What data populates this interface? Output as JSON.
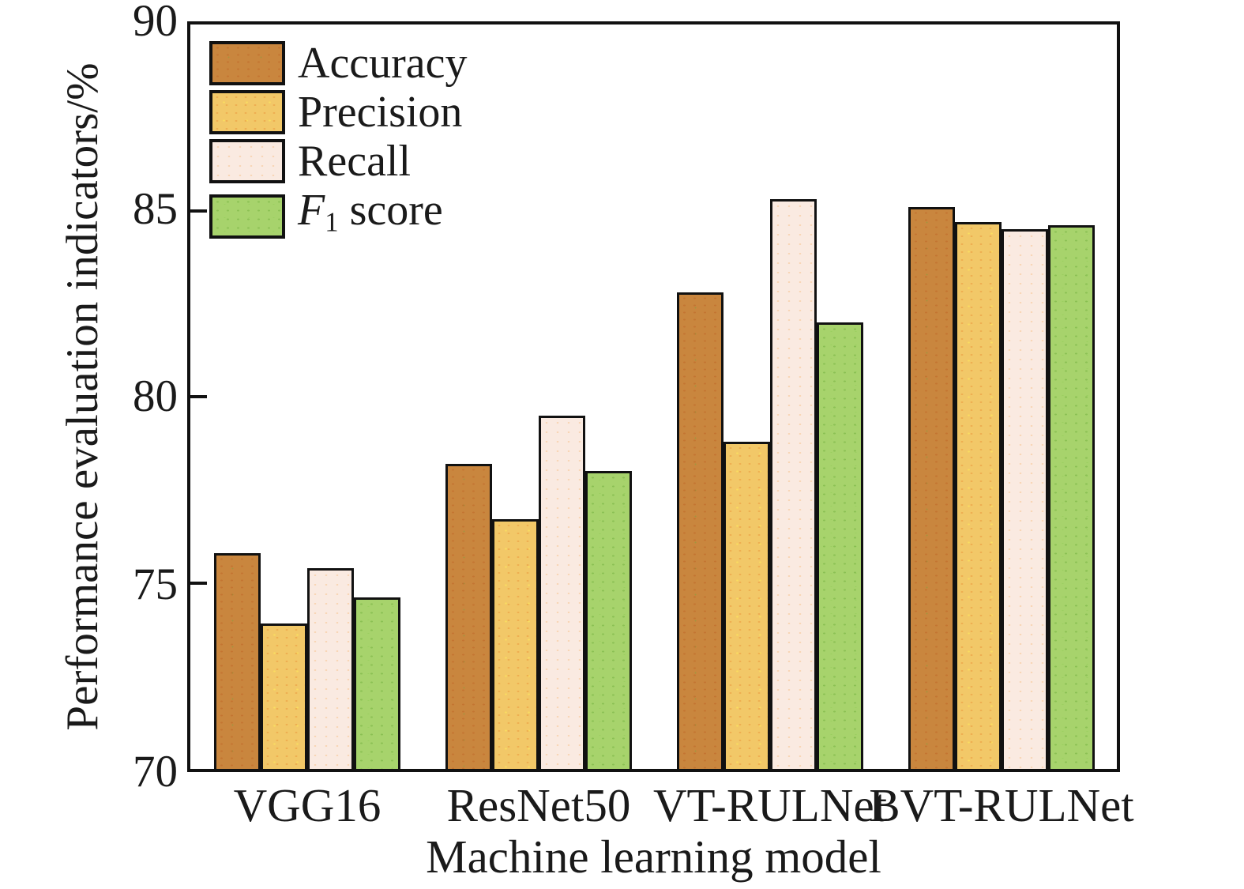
{
  "chart_data": {
    "type": "bar",
    "title": "",
    "xlabel": "Machine learning model",
    "ylabel": "Performance evaluation indicators/%",
    "categories": [
      "VGG16",
      "ResNet50",
      "VT-RULNet",
      "BVT-RULNet"
    ],
    "series": [
      {
        "name": "Accuracy",
        "color": "#c9863e",
        "values": [
          75.8,
          78.2,
          82.8,
          85.1
        ]
      },
      {
        "name": "Precision",
        "color": "#f2c868",
        "values": [
          73.9,
          76.7,
          78.8,
          84.7
        ]
      },
      {
        "name": "Recall",
        "color": "#faeae1",
        "values": [
          75.4,
          79.5,
          85.3,
          84.5
        ]
      },
      {
        "name": "F1 score",
        "color": "#a7d36c",
        "values": [
          74.6,
          78.0,
          82.0,
          84.6
        ]
      }
    ],
    "ylim": [
      70,
      90
    ],
    "yticks": [
      70,
      75,
      80,
      85,
      90
    ],
    "ytick_labels": [
      "70",
      "75",
      "80",
      "85",
      "90"
    ],
    "grid": "off",
    "legend_position": "top-left-inside",
    "axis_color": "#111111"
  },
  "legend_f1": {
    "italic": "F",
    "sub": "1",
    "rest": " score"
  }
}
